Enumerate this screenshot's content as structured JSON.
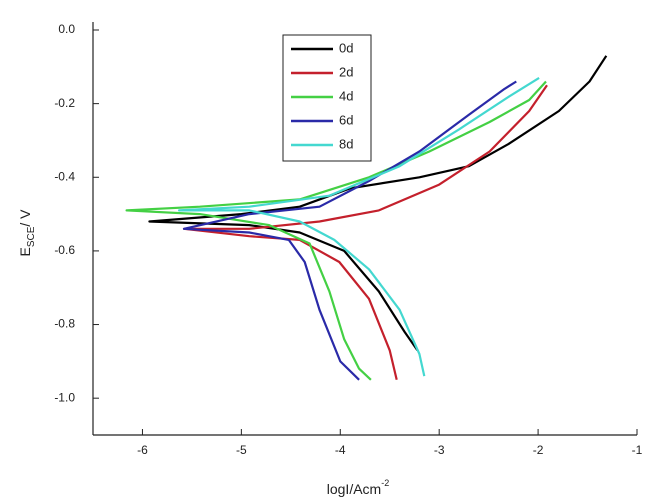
{
  "chart_data": {
    "type": "line",
    "xlabel": {
      "main": "logI/Acm",
      "sup": "-2"
    },
    "ylabel": {
      "main": "E",
      "sub": "SCE",
      "rest": "/ V"
    },
    "xlim": [
      -6.5,
      -1
    ],
    "ylim": [
      -1.1,
      0
    ],
    "xticks": [
      -6,
      -5,
      -4,
      -3,
      -2,
      -1
    ],
    "yticks": [
      {
        "value": 0,
        "label": "0.0"
      },
      -0.2,
      -0.4,
      -0.6,
      -0.8,
      {
        "value": -1,
        "label": "-1.0"
      }
    ],
    "legend": "top-center",
    "series": [
      {
        "name": "0d",
        "color": "#000000",
        "x": [
          -3.22,
          -3.35,
          -3.61,
          -3.96,
          -4.41,
          -4.92,
          -5.93,
          -5.0,
          -4.41,
          -3.9,
          -3.2,
          -2.7,
          -2.3,
          -1.79,
          -1.48,
          -1.31
        ],
        "values": [
          -0.87,
          -0.82,
          -0.71,
          -0.6,
          -0.55,
          -0.53,
          -0.52,
          -0.5,
          -0.48,
          -0.43,
          -0.4,
          -0.37,
          -0.31,
          -0.22,
          -0.14,
          -0.07
        ]
      },
      {
        "name": "2d",
        "color": "#c4202c",
        "x": [
          -3.43,
          -3.5,
          -3.71,
          -4.01,
          -4.41,
          -4.92,
          -5.58,
          -4.92,
          -4.21,
          -3.61,
          -3.0,
          -2.49,
          -2.09,
          -1.91
        ],
        "values": [
          -0.95,
          -0.87,
          -0.73,
          -0.63,
          -0.57,
          -0.56,
          -0.54,
          -0.54,
          -0.52,
          -0.49,
          -0.42,
          -0.33,
          -0.22,
          -0.15
        ]
      },
      {
        "name": "4d",
        "color": "#44d044",
        "x": [
          -3.69,
          -3.81,
          -3.96,
          -4.11,
          -4.31,
          -4.72,
          -5.42,
          -6.16,
          -5.42,
          -4.41,
          -3.71,
          -3.1,
          -2.49,
          -2.09,
          -1.92
        ],
        "values": [
          -0.95,
          -0.92,
          -0.84,
          -0.71,
          -0.58,
          -0.53,
          -0.5,
          -0.49,
          -0.48,
          -0.46,
          -0.4,
          -0.33,
          -0.25,
          -0.19,
          -0.14
        ]
      },
      {
        "name": "6d",
        "color": "#2a2aa8",
        "x": [
          -3.81,
          -4.0,
          -4.21,
          -4.36,
          -4.52,
          -4.92,
          -5.58,
          -4.92,
          -4.21,
          -3.71,
          -3.2,
          -2.7,
          -2.34,
          -2.22
        ],
        "values": [
          -0.95,
          -0.9,
          -0.76,
          -0.63,
          -0.57,
          -0.55,
          -0.54,
          -0.5,
          -0.48,
          -0.41,
          -0.33,
          -0.23,
          -0.16,
          -0.14
        ]
      },
      {
        "name": "8d",
        "color": "#44d8d0",
        "x": [
          -3.15,
          -3.2,
          -3.4,
          -3.71,
          -4.06,
          -4.41,
          -4.92,
          -5.63,
          -4.92,
          -4.11,
          -3.4,
          -2.8,
          -2.29,
          -1.99
        ],
        "values": [
          -0.94,
          -0.88,
          -0.76,
          -0.65,
          -0.57,
          -0.52,
          -0.49,
          -0.49,
          -0.48,
          -0.45,
          -0.37,
          -0.27,
          -0.18,
          -0.13
        ]
      }
    ]
  }
}
